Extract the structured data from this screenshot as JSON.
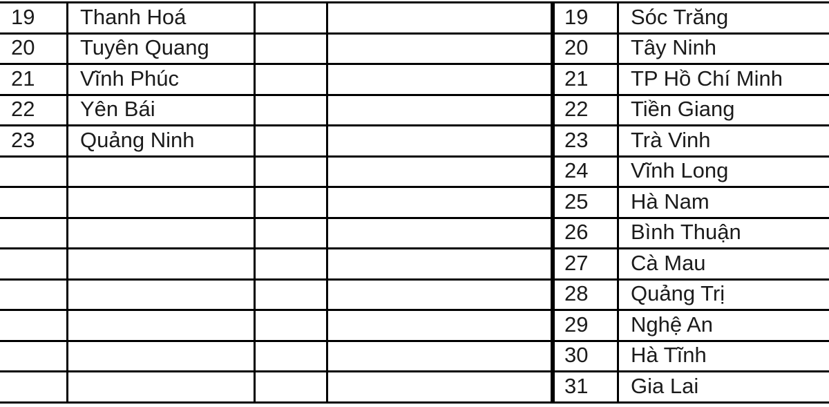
{
  "colors": {
    "border": "#000000",
    "text": "#1b1b1b",
    "background": "#ffffff"
  },
  "left_table": {
    "rows": [
      {
        "no": "19",
        "name": "Thanh Hoá"
      },
      {
        "no": "20",
        "name": "Tuyên Quang"
      },
      {
        "no": "21",
        "name": "Vĩnh Phúc"
      },
      {
        "no": "22",
        "name": "Yên Bái"
      },
      {
        "no": "23",
        "name": "Quảng Ninh"
      },
      {
        "no": "",
        "name": ""
      },
      {
        "no": "",
        "name": ""
      },
      {
        "no": "",
        "name": ""
      },
      {
        "no": "",
        "name": ""
      },
      {
        "no": "",
        "name": ""
      },
      {
        "no": "",
        "name": ""
      },
      {
        "no": "",
        "name": ""
      },
      {
        "no": "",
        "name": ""
      }
    ]
  },
  "right_table": {
    "rows": [
      {
        "no": "19",
        "name": "Sóc Trăng"
      },
      {
        "no": "20",
        "name": "Tây Ninh"
      },
      {
        "no": "21",
        "name": "TP Hồ Chí Minh"
      },
      {
        "no": "22",
        "name": "Tiền Giang"
      },
      {
        "no": "23",
        "name": "Trà Vinh"
      },
      {
        "no": "24",
        "name": "Vĩnh Long"
      },
      {
        "no": "25",
        "name": "Hà Nam"
      },
      {
        "no": "26",
        "name": "Bình Thuận"
      },
      {
        "no": "27",
        "name": "Cà Mau"
      },
      {
        "no": "28",
        "name": "Quảng Trị"
      },
      {
        "no": "29",
        "name": "Nghệ An"
      },
      {
        "no": "30",
        "name": "Hà Tĩnh"
      },
      {
        "no": "31",
        "name": "Gia Lai"
      }
    ]
  }
}
